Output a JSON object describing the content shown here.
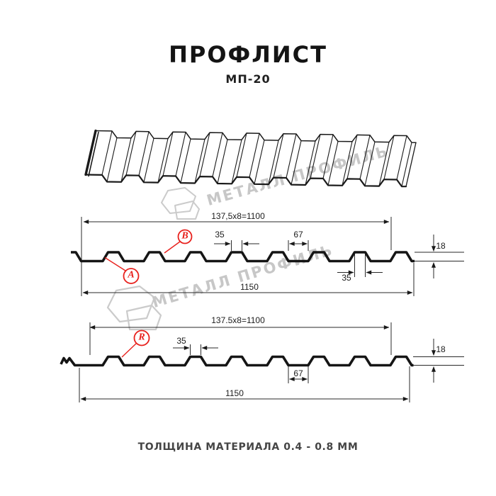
{
  "header": {
    "title": "ПРОФЛИСТ",
    "subtitle": "МП-20"
  },
  "watermark": {
    "text": "МЕТАЛЛ ПРОФИЛЬ"
  },
  "sections": {
    "top": {
      "formula": "137,5x8=1100",
      "total_width": "1150",
      "rib_top_width": "35",
      "valley_width": "67",
      "height": "18",
      "rib_bottom_width": "35",
      "point_a": "A",
      "point_b": "B"
    },
    "bottom": {
      "formula": "137.5x8=1100",
      "total_width": "1150",
      "rib_top_width": "35",
      "valley_width": "67",
      "height": "18",
      "point_r": "R"
    }
  },
  "footer": {
    "note": "ТОЛЩИНА МАТЕРИАЛА 0.4 - 0.8 ММ"
  },
  "colors": {
    "accent": "#e8211d",
    "line": "#1a1a1a",
    "watermark": "#c7c7c7"
  }
}
